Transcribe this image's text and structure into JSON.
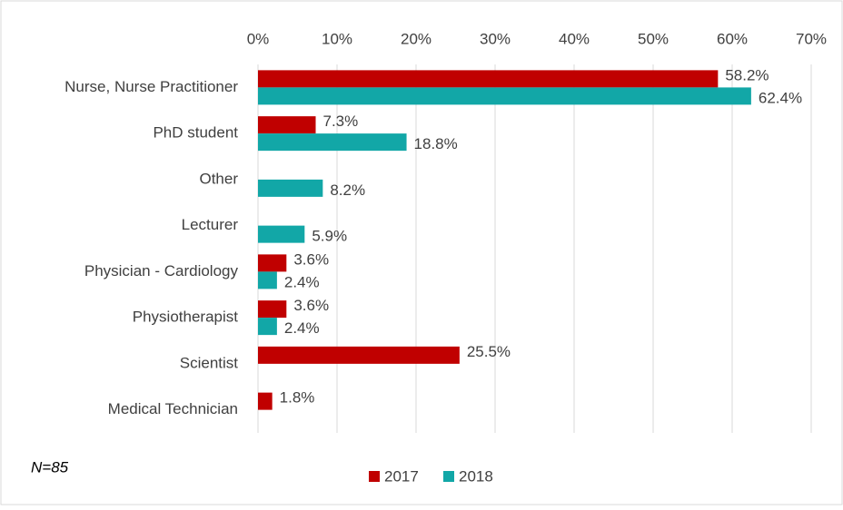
{
  "chart_data": {
    "type": "bar",
    "orientation": "horizontal",
    "categories": [
      "Nurse, Nurse Practitioner",
      "PhD student",
      "Other",
      "Lecturer",
      "Physician - Cardiology",
      "Physiotherapist",
      "Scientist",
      "Medical Technician"
    ],
    "series": [
      {
        "name": "2017",
        "color": "#c00000",
        "values": [
          58.2,
          7.3,
          null,
          null,
          3.6,
          3.6,
          25.5,
          1.8
        ],
        "value_labels": [
          "58.2%",
          "7.3%",
          null,
          null,
          "3.6%",
          "3.6%",
          "25.5%",
          "1.8%"
        ]
      },
      {
        "name": "2018",
        "color": "#12a7a7",
        "values": [
          62.4,
          18.8,
          8.2,
          5.9,
          2.4,
          2.4,
          null,
          null
        ],
        "value_labels": [
          "62.4%",
          "18.8%",
          "8.2%",
          "5.9%",
          "2.4%",
          "2.4%",
          null,
          null
        ]
      }
    ],
    "xlim": [
      0,
      70
    ],
    "xticks": [
      {
        "value": 0,
        "label": "0%"
      },
      {
        "value": 10,
        "label": "10%"
      },
      {
        "value": 20,
        "label": "20%"
      },
      {
        "value": 30,
        "label": "30%"
      },
      {
        "value": 40,
        "label": "40%"
      },
      {
        "value": 50,
        "label": "50%"
      },
      {
        "value": 60,
        "label": "60%"
      },
      {
        "value": 70,
        "label": "70%"
      }
    ],
    "grid": true,
    "legend": "bottom",
    "annotation": "N=85"
  }
}
